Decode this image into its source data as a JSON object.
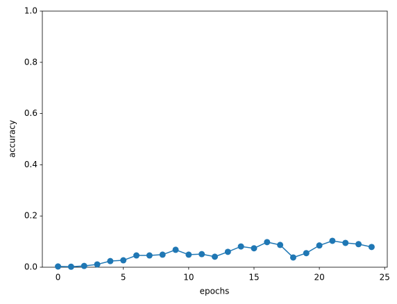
{
  "chart_data": {
    "type": "line",
    "xlabel": "epochs",
    "ylabel": "accuracy",
    "x": [
      0,
      1,
      2,
      3,
      4,
      5,
      6,
      7,
      8,
      9,
      10,
      11,
      12,
      13,
      14,
      15,
      16,
      17,
      18,
      19,
      20,
      21,
      22,
      23,
      24
    ],
    "series": [
      {
        "color": "#1f77b4",
        "marker": "o",
        "values": [
          0.003,
          0.002,
          0.005,
          0.011,
          0.024,
          0.027,
          0.046,
          0.046,
          0.049,
          0.068,
          0.049,
          0.051,
          0.041,
          0.06,
          0.081,
          0.074,
          0.098,
          0.087,
          0.038,
          0.055,
          0.085,
          0.103,
          0.095,
          0.09,
          0.079
        ]
      }
    ],
    "xlim": [
      -1.2,
      25.2
    ],
    "xticks": [
      0,
      5,
      10,
      15,
      20,
      25
    ],
    "ylim": [
      0,
      1
    ],
    "yticks": [
      {
        "value": 0,
        "label": "0.0"
      },
      {
        "value": 0.2,
        "label": "0.2"
      },
      {
        "value": 0.4,
        "label": "0.4"
      },
      {
        "value": 0.6,
        "label": "0.6"
      },
      {
        "value": 0.8,
        "label": "0.8"
      },
      {
        "value": 1,
        "label": "1.0"
      }
    ],
    "grid": false
  }
}
